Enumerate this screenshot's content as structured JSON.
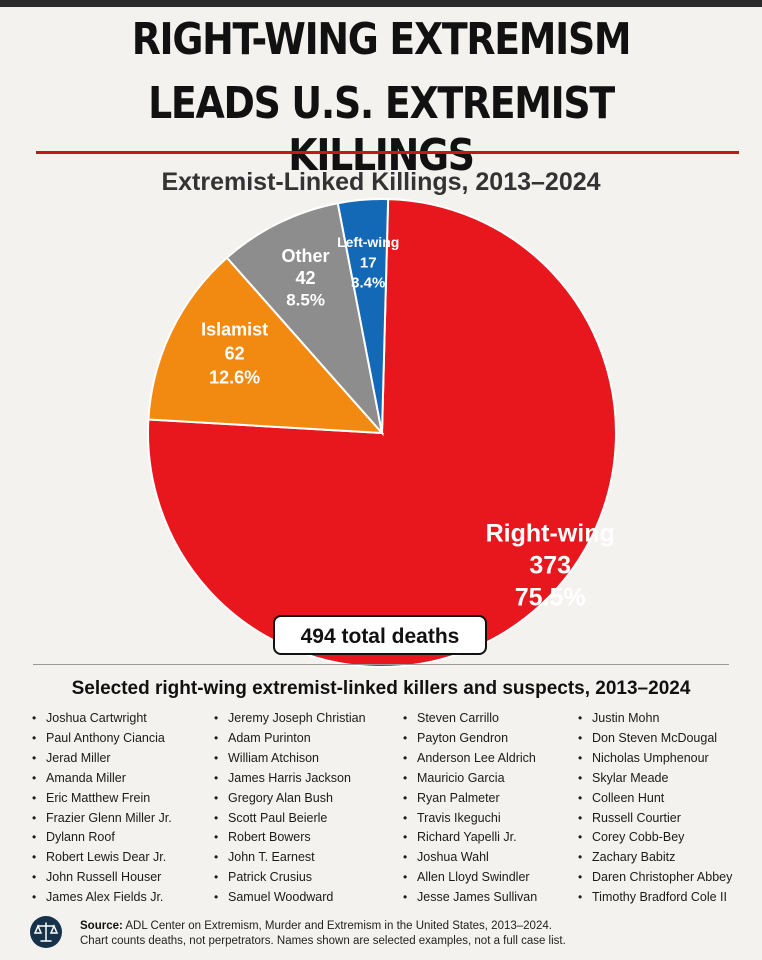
{
  "title_line1": "RIGHT-WING EXTREMISM",
  "title_line2": "LEADS U.S. EXTREMIST KILLINGS",
  "chart_data": {
    "type": "pie",
    "title": "Extremist-Linked Killings, 2013–2024",
    "slices": [
      {
        "label": "Right-wing",
        "value": 373,
        "percent": "75.5%",
        "color": "#e8171d"
      },
      {
        "label": "Islamist",
        "value": 62,
        "percent": "12.6%",
        "color": "#f28a12"
      },
      {
        "label": "Other",
        "value": 42,
        "percent": "8.5%",
        "color": "#8d8d8d"
      },
      {
        "label": "Left-wing",
        "value": 17,
        "percent": "3.4%",
        "color": "#1469b6"
      }
    ],
    "total_label": "494 total deaths"
  },
  "list_title": "Selected right-wing extremist-linked killers and suspects, 2013–2024",
  "names": [
    [
      "Joshua Cartwright",
      "Paul Anthony Ciancia",
      "Jerad Miller",
      "Amanda Miller",
      "Eric Matthew Frein",
      "Frazier Glenn Miller Jr.",
      "Dylann Roof",
      "Robert Lewis Dear Jr.",
      "John Russell Houser",
      "James Alex Fields Jr."
    ],
    [
      "Jeremy Joseph Christian",
      "Adam Purinton",
      "William Atchison",
      "James Harris Jackson",
      "Gregory Alan Bush",
      "Scott Paul Beierle",
      "Robert Bowers",
      "John T. Earnest",
      "Patrick Crusius",
      "Samuel Woodward"
    ],
    [
      "Steven Carrillo",
      "Payton Gendron",
      "Anderson Lee Aldrich",
      "Mauricio Garcia",
      "Ryan Palmeter",
      "Travis Ikeguchi",
      "Richard Yapelli Jr.",
      "Joshua Wahl",
      "Allen Lloyd Swindler",
      "Jesse James Sullivan"
    ],
    [
      "Justin Mohn",
      "Don Steven McDougal",
      "Nicholas Umphenour",
      "Skylar Meade",
      "Colleen Hunt",
      "Russell Courtier",
      "Corey Cobb-Bey",
      "Zachary Babitz",
      "Daren Christopher Abbey",
      "Timothy Bradford Cole II"
    ]
  ],
  "source": {
    "label": "Source:",
    "text": "ADL Center on Extremism, Murder and Extremism in the United States, 2013–2024.",
    "note": "Chart counts deaths, not perpetrators. Names shown are selected examples, not a full case list."
  },
  "footer_icon": "scales-of-justice-icon"
}
